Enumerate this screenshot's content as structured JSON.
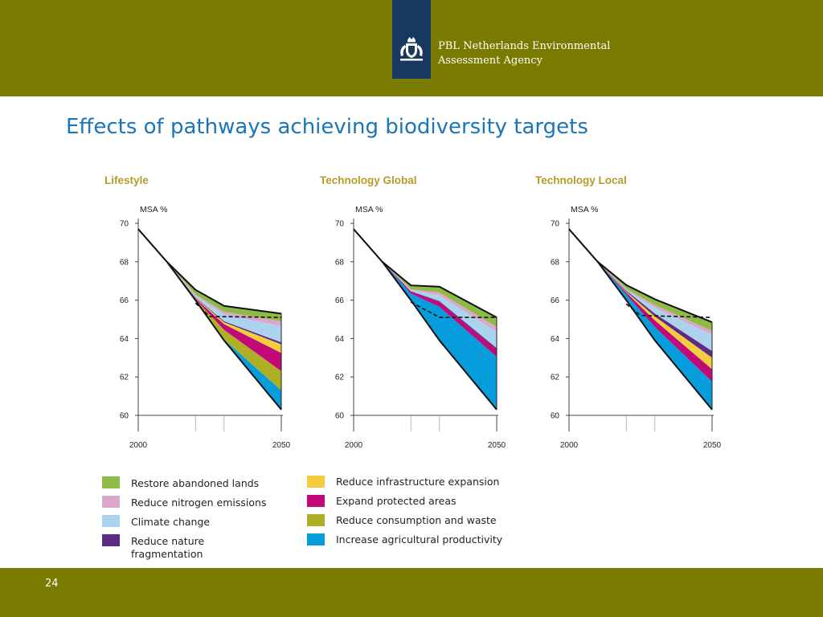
{
  "header": {
    "org_line1": "PBL Netherlands Environmental",
    "org_line2": "Assessment Agency",
    "band_color": "#787b00",
    "logo_color": "#18385f",
    "logo_icon": "coat-of-arms-icon"
  },
  "title": "Effects of pathways achieving biodiversity targets",
  "chart_data": [
    {
      "type": "area",
      "title": "Lifestyle",
      "ylabel": "MSA %",
      "xlim": [
        2000,
        2050
      ],
      "ylim": [
        60,
        70
      ],
      "yticks": [
        60,
        62,
        64,
        66,
        68,
        70
      ],
      "xticks": [
        2000,
        2050
      ],
      "grid": false,
      "x": [
        2020,
        2030,
        2050
      ],
      "history": [
        [
          2000,
          69.7
        ],
        [
          2010,
          68.0
        ]
      ],
      "reference_line": [
        [
          2010,
          68.0
        ],
        [
          2020,
          66.0
        ],
        [
          2030,
          63.9
        ],
        [
          2050,
          60.3
        ]
      ],
      "target_line": [
        [
          2020,
          65.85
        ],
        [
          2025,
          65.15
        ],
        [
          2050,
          65.1
        ]
      ],
      "series": [
        {
          "name": "Restore abandoned lands",
          "values": [
            0.25,
            0.3,
            0.4
          ]
        },
        {
          "name": "Reduce nitrogen emissions",
          "values": [
            0.06,
            0.15,
            0.25
          ]
        },
        {
          "name": "Climate change",
          "values": [
            0.08,
            0.35,
            0.85
          ]
        },
        {
          "name": "Reduce nature fragmentation",
          "values": [
            0.03,
            0.05,
            0.1
          ]
        },
        {
          "name": "Reduce infrastructure expansion",
          "values": [
            0.03,
            0.1,
            0.45
          ]
        },
        {
          "name": "Expand protected areas",
          "values": [
            0.04,
            0.3,
            0.95
          ]
        },
        {
          "name": "Reduce consumption and waste",
          "values": [
            0.05,
            0.5,
            1.0
          ]
        },
        {
          "name": "Increase agricultural productivity",
          "values": [
            0.0,
            0.05,
            1.0
          ]
        }
      ]
    },
    {
      "type": "area",
      "title": "Technology Global",
      "ylabel": "MSA %",
      "xlim": [
        2000,
        2050
      ],
      "ylim": [
        60,
        70
      ],
      "yticks": [
        60,
        62,
        64,
        66,
        68,
        70
      ],
      "xticks": [
        2000,
        2050
      ],
      "grid": false,
      "x": [
        2020,
        2030,
        2050
      ],
      "history": [
        [
          2000,
          69.7
        ],
        [
          2010,
          68.0
        ]
      ],
      "reference_line": [
        [
          2010,
          68.0
        ],
        [
          2020,
          66.0
        ],
        [
          2030,
          63.9
        ],
        [
          2050,
          60.3
        ]
      ],
      "target_line": [
        [
          2020,
          65.9
        ],
        [
          2030,
          65.1
        ],
        [
          2050,
          65.1
        ]
      ],
      "series": [
        {
          "name": "Restore abandoned lands",
          "values": [
            0.2,
            0.3,
            0.5
          ]
        },
        {
          "name": "Reduce nitrogen emissions",
          "values": [
            0.05,
            0.15,
            0.25
          ]
        },
        {
          "name": "Climate change",
          "values": [
            0.05,
            0.3,
            0.85
          ]
        },
        {
          "name": "Reduce nature fragmentation",
          "values": [
            0.02,
            0.05,
            0.1
          ]
        },
        {
          "name": "Reduce infrastructure expansion",
          "values": [
            0.0,
            0.0,
            0.0
          ]
        },
        {
          "name": "Expand protected areas",
          "values": [
            0.1,
            0.25,
            0.35
          ]
        },
        {
          "name": "Reduce consumption and waste",
          "values": [
            0.0,
            0.0,
            0.0
          ]
        },
        {
          "name": "Increase agricultural productivity",
          "values": [
            0.35,
            1.75,
            2.75
          ]
        }
      ]
    },
    {
      "type": "area",
      "title": "Technology Local",
      "ylabel": "MSA %",
      "xlim": [
        2000,
        2050
      ],
      "ylim": [
        60,
        70
      ],
      "yticks": [
        60,
        62,
        64,
        66,
        68,
        70
      ],
      "xticks": [
        2000,
        2050
      ],
      "grid": false,
      "x": [
        2020,
        2030,
        2050
      ],
      "history": [
        [
          2000,
          69.7
        ],
        [
          2010,
          68.0
        ]
      ],
      "reference_line": [
        [
          2010,
          68.0
        ],
        [
          2020,
          66.0
        ],
        [
          2030,
          63.9
        ],
        [
          2050,
          60.3
        ]
      ],
      "target_line": [
        [
          2020,
          65.8
        ],
        [
          2025,
          65.2
        ],
        [
          2050,
          65.1
        ]
      ],
      "series": [
        {
          "name": "Restore abandoned lands",
          "values": [
            0.2,
            0.3,
            0.45
          ]
        },
        {
          "name": "Reduce nitrogen emissions",
          "values": [
            0.04,
            0.15,
            0.2
          ]
        },
        {
          "name": "Climate change",
          "values": [
            0.05,
            0.3,
            0.85
          ]
        },
        {
          "name": "Reduce nature fragmentation",
          "values": [
            0.05,
            0.15,
            0.35
          ]
        },
        {
          "name": "Reduce infrastructure expansion",
          "values": [
            0.05,
            0.2,
            0.6
          ]
        },
        {
          "name": "Expand protected areas",
          "values": [
            0.1,
            0.35,
            0.65
          ]
        },
        {
          "name": "Reduce consumption and waste",
          "values": [
            0.0,
            0.0,
            0.0
          ]
        },
        {
          "name": "Increase agricultural productivity",
          "values": [
            0.3,
            0.7,
            1.45
          ]
        }
      ]
    }
  ],
  "legend": [
    {
      "label": "Restore abandoned lands",
      "color": "#8dbb45"
    },
    {
      "label": "Reduce nitrogen emissions",
      "color": "#dba7cb"
    },
    {
      "label": "Climate change",
      "color": "#acd3ee"
    },
    {
      "label": "Reduce nature fragmentation",
      "color": "#5d2a84"
    },
    {
      "label": "Reduce infrastructure expansion",
      "color": "#f3cd3d"
    },
    {
      "label": "Expand protected areas",
      "color": "#c2097a"
    },
    {
      "label": "Reduce consumption and waste",
      "color": "#afaf26"
    },
    {
      "label": "Increase agricultural productivity",
      "color": "#079ddd"
    }
  ],
  "colors": {
    "title": "#1a76ba",
    "chart_title": "#b59b2c",
    "reference": "#111111"
  },
  "footer": {
    "page_number": "24"
  }
}
